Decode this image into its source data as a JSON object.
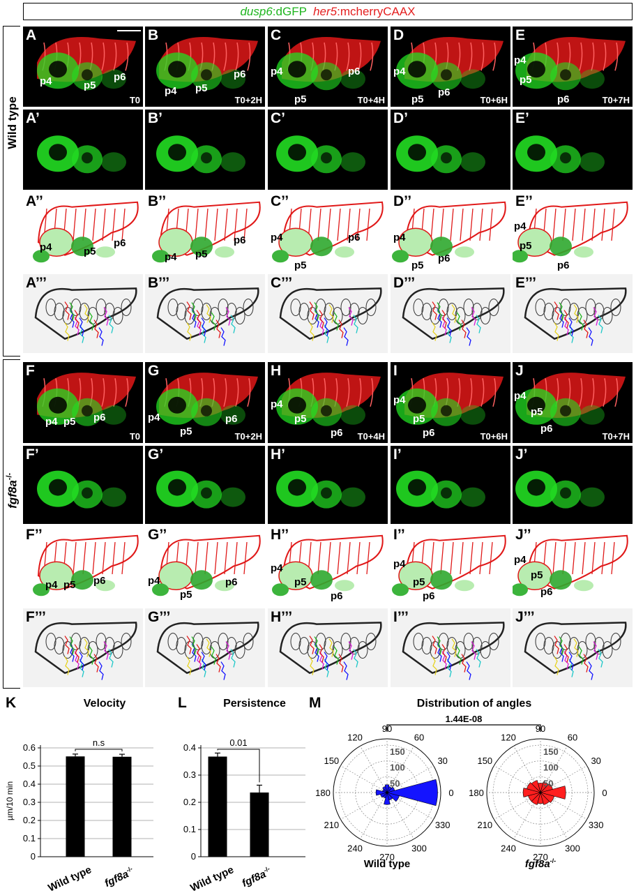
{
  "header": {
    "dusp6": "dusp6",
    "dgfp": ":dGFP",
    "her5": "her5",
    "mcherry": ":mcherryCAAX"
  },
  "groups": {
    "wild_type": "Wild type",
    "mutant_gene": "fgf8a",
    "mutant_sup": "-/-"
  },
  "colors": {
    "green": "#1ee61e",
    "red": "#ff1e1e",
    "blue": "#1414ff",
    "black": "#000000"
  },
  "wt_columns": [
    {
      "key": "A",
      "time": "T0",
      "l1": "A",
      "l2": "A’",
      "l3": "A’’",
      "l4": "A’’’"
    },
    {
      "key": "B",
      "time": "T0+2H",
      "l1": "B",
      "l2": "B’",
      "l3": "B’’",
      "l4": "B’’’"
    },
    {
      "key": "C",
      "time": "T0+4H",
      "l1": "C",
      "l2": "C’",
      "l3": "C’’",
      "l4": "C’’’"
    },
    {
      "key": "D",
      "time": "T0+6H",
      "l1": "D",
      "l2": "D’",
      "l3": "D’’",
      "l4": "D’’’"
    },
    {
      "key": "E",
      "time": "T0+7H",
      "l1": "E",
      "l2": "E’",
      "l3": "E’’",
      "l4": "E’’’"
    }
  ],
  "mut_columns": [
    {
      "key": "F",
      "time": "T0",
      "l1": "F",
      "l2": "F’",
      "l3": "F’’",
      "l4": "F’’’"
    },
    {
      "key": "G",
      "time": "T0+2H",
      "l1": "G",
      "l2": "G’",
      "l3": "G’’",
      "l4": "G’’’"
    },
    {
      "key": "H",
      "time": "T0+4H",
      "l1": "H",
      "l2": "H’",
      "l3": "H’’",
      "l4": "H’’’"
    },
    {
      "key": "I",
      "time": "T0+6H",
      "l1": "I",
      "l2": "I’",
      "l3": "I’’",
      "l4": "I’’’"
    },
    {
      "key": "J",
      "time": "T0+7H",
      "l1": "J",
      "l2": "J’",
      "l3": "J’’",
      "l4": "J’’’"
    }
  ],
  "pouch_labels": {
    "p4": "p4",
    "p5": "p5",
    "p6": "p6"
  },
  "chart_data": [
    {
      "panel": "K",
      "type": "bar",
      "title": "Velocity",
      "categories": [
        "Wild type",
        "fgf8a-/-"
      ],
      "values": [
        0.553,
        0.551
      ],
      "errors": [
        0.013,
        0.014
      ],
      "ylabel": "µm/10 min",
      "ylim": [
        0,
        0.6
      ],
      "yticks": [
        "0",
        "0.1",
        "0.2",
        "0.3",
        "0.4",
        "0.5",
        "0.6"
      ],
      "significance": "n.s",
      "grid": true
    },
    {
      "panel": "L",
      "type": "bar",
      "title": "Persistence",
      "categories": [
        "Wild type",
        "fgf8a-/-"
      ],
      "values": [
        0.368,
        0.236
      ],
      "errors": [
        0.013,
        0.027
      ],
      "ylabel": "",
      "ylim": [
        0,
        0.4
      ],
      "yticks": [
        "0",
        "0.1",
        "0.2",
        "0.3",
        "0.4"
      ],
      "significance": "0.01",
      "grid": true
    },
    {
      "panel": "M",
      "type": "polar-histogram",
      "title": "Distribution of angles",
      "angle_labels": [
        "0",
        "30",
        "60",
        "90",
        "120",
        "150",
        "180",
        "210",
        "240",
        "270",
        "300",
        "330"
      ],
      "radial_ticks": [
        "50",
        "100",
        "150"
      ],
      "rmax": 170,
      "bin_width_deg": 30,
      "significance": "1.44E-08",
      "series": [
        {
          "name": "Wild type",
          "color": "#1414ff",
          "bins": [
            {
              "angle": 0,
              "value": 160
            },
            {
              "angle": 30,
              "value": 25
            },
            {
              "angle": 60,
              "value": 20
            },
            {
              "angle": 90,
              "value": 25
            },
            {
              "angle": 120,
              "value": 20
            },
            {
              "angle": 150,
              "value": 15
            },
            {
              "angle": 180,
              "value": 35
            },
            {
              "angle": 210,
              "value": 22
            },
            {
              "angle": 240,
              "value": 18
            },
            {
              "angle": 270,
              "value": 38
            },
            {
              "angle": 300,
              "value": 25
            },
            {
              "angle": 330,
              "value": 40
            }
          ]
        },
        {
          "name": "fgf8a-/-",
          "color": "#ff1e1e",
          "bins": [
            {
              "angle": 0,
              "value": 80
            },
            {
              "angle": 30,
              "value": 40
            },
            {
              "angle": 60,
              "value": 35
            },
            {
              "angle": 90,
              "value": 30
            },
            {
              "angle": 120,
              "value": 40
            },
            {
              "angle": 150,
              "value": 45
            },
            {
              "angle": 180,
              "value": 55
            },
            {
              "angle": 210,
              "value": 40
            },
            {
              "angle": 240,
              "value": 40
            },
            {
              "angle": 270,
              "value": 35
            },
            {
              "angle": 300,
              "value": 40
            },
            {
              "angle": 330,
              "value": 45
            }
          ]
        }
      ]
    }
  ]
}
